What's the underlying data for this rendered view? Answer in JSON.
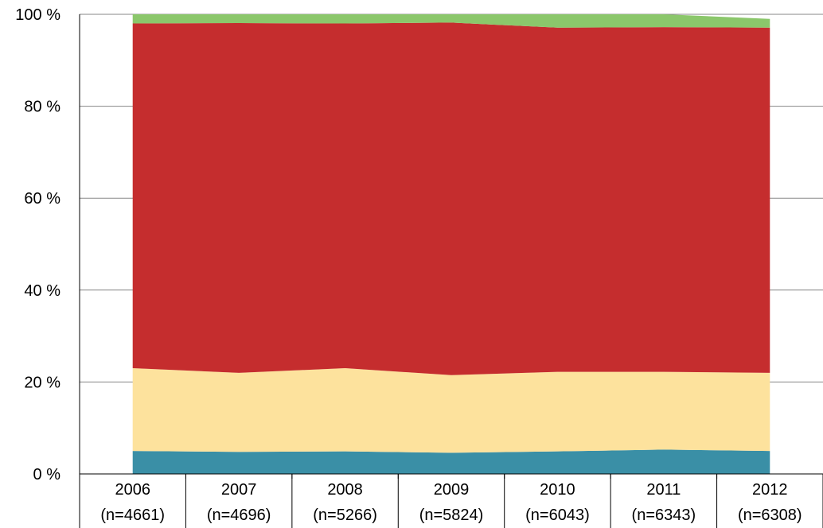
{
  "chart_data": {
    "type": "area",
    "stacked": true,
    "title": "",
    "xlabel": "",
    "ylabel": "",
    "ylim": [
      0,
      100
    ],
    "y_ticks": [
      "0 %",
      "20 %",
      "40 %",
      "60 %",
      "80 %",
      "100 %"
    ],
    "grid": true,
    "legend": "none",
    "categories": [
      [
        "2006",
        "(n=4661)"
      ],
      [
        "2007",
        "(n=4696)"
      ],
      [
        "2008",
        "(n=5266)"
      ],
      [
        "2009",
        "(n=5824)"
      ],
      [
        "2010",
        "(n=6043)"
      ],
      [
        "2011",
        "(n=6343)"
      ],
      [
        "2012",
        "(n=6308)"
      ]
    ],
    "series": [
      {
        "color": "#3a8fa6",
        "values": [
          5.0,
          4.8,
          4.9,
          4.6,
          4.9,
          5.3,
          5.0
        ]
      },
      {
        "color": "#fde29d",
        "values": [
          18.0,
          17.2,
          18.1,
          16.9,
          17.3,
          16.9,
          17.0
        ]
      },
      {
        "color": "#c52d2e",
        "values": [
          75.0,
          76.1,
          75.0,
          76.7,
          74.9,
          75.0,
          75.1
        ]
      },
      {
        "color": "#8bc76b",
        "values": [
          2.0,
          1.9,
          2.0,
          1.8,
          2.9,
          2.8,
          1.9
        ]
      }
    ],
    "gridline_color": "#878787",
    "axis_color": "#000000"
  }
}
